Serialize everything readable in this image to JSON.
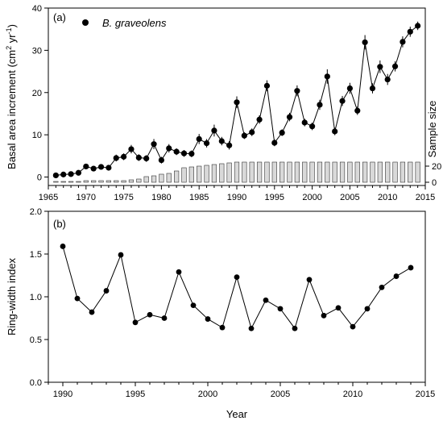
{
  "chart_data": [
    {
      "type": "line",
      "panel_label": "(a)",
      "ylabel_main": "Basal area increment (cm",
      "ylabel_sup1": "2",
      "ylabel_mid": " yr",
      "ylabel_sup2": "-1",
      "ylabel_end": ")",
      "ylabel_right": "Sample size",
      "xlabel": "",
      "xlim": [
        1965,
        2015
      ],
      "ylim": [
        -2,
        40
      ],
      "x_ticks": [
        1965,
        1970,
        1975,
        1980,
        1985,
        1990,
        1995,
        2000,
        2005,
        2010,
        2015
      ],
      "y_ticks": [
        0,
        10,
        20,
        30,
        40
      ],
      "y2_ticks": [
        0,
        20
      ],
      "legend": {
        "label": "B. graveolens",
        "position": "top-left"
      },
      "grid": false,
      "series": [
        {
          "name": "B. graveolens",
          "kind": "line+markers+errorbars",
          "x": [
            1966,
            1967,
            1968,
            1969,
            1970,
            1971,
            1972,
            1973,
            1974,
            1975,
            1976,
            1977,
            1978,
            1979,
            1980,
            1981,
            1982,
            1983,
            1984,
            1985,
            1986,
            1987,
            1988,
            1989,
            1990,
            1991,
            1992,
            1993,
            1994,
            1995,
            1996,
            1997,
            1998,
            1999,
            2000,
            2001,
            2002,
            2003,
            2004,
            2005,
            2006,
            2007,
            2008,
            2009,
            2010,
            2011,
            2012,
            2013,
            2014
          ],
          "values": [
            0.4,
            0.6,
            0.7,
            1.0,
            2.5,
            2.0,
            2.4,
            2.2,
            4.5,
            4.8,
            6.6,
            4.6,
            4.4,
            7.8,
            4.0,
            6.8,
            6.0,
            5.6,
            5.5,
            9.0,
            8.0,
            11.0,
            8.5,
            7.5,
            17.7,
            9.8,
            10.6,
            13.6,
            21.6,
            8.1,
            10.5,
            14.2,
            20.4,
            12.9,
            12.0,
            17.1,
            23.8,
            10.8,
            18.0,
            21.0,
            15.7,
            31.9,
            21.0,
            26.1,
            23.1,
            26.2,
            32.0,
            34.4,
            35.8
          ],
          "errors": [
            0.3,
            0.3,
            0.3,
            0.4,
            0.6,
            0.5,
            0.5,
            0.5,
            0.8,
            0.8,
            1.0,
            0.8,
            0.8,
            1.2,
            0.8,
            1.0,
            0.8,
            0.8,
            0.8,
            1.2,
            1.0,
            1.4,
            1.0,
            1.0,
            1.4,
            0.8,
            0.9,
            1.0,
            1.3,
            0.8,
            0.8,
            1.0,
            1.3,
            0.9,
            0.9,
            1.2,
            1.7,
            0.9,
            1.2,
            1.3,
            1.0,
            1.7,
            1.2,
            1.5,
            1.3,
            1.2,
            1.3,
            1.2,
            1.0
          ]
        },
        {
          "name": "",
          "kind": "bar-secondary",
          "x": [
            1966,
            1967,
            1968,
            1969,
            1970,
            1971,
            1972,
            1973,
            1974,
            1975,
            1976,
            1977,
            1978,
            1979,
            1980,
            1981,
            1982,
            1983,
            1984,
            1985,
            1986,
            1987,
            1988,
            1989,
            1990,
            1991,
            1992,
            1993,
            1994,
            1995,
            1996,
            1997,
            1998,
            1999,
            2000,
            2001,
            2002,
            2003,
            2004,
            2005,
            2006,
            2007,
            2008,
            2009,
            2010,
            2011,
            2012,
            2013,
            2014
          ],
          "values": [
            1,
            1,
            1,
            1,
            2,
            2,
            2,
            2,
            2,
            2,
            3,
            4,
            7,
            8,
            10,
            11,
            14,
            18,
            19,
            20,
            21,
            22,
            23,
            24,
            25,
            25,
            25,
            25,
            25,
            25,
            25,
            25,
            25,
            25,
            25,
            25,
            25,
            25,
            25,
            25,
            25,
            25,
            25,
            25,
            25,
            25,
            25,
            25,
            25
          ]
        }
      ]
    },
    {
      "type": "line",
      "panel_label": "(b)",
      "xlabel": "Year",
      "ylabel": "Ring-width index",
      "xlim": [
        1989,
        2015
      ],
      "ylim": [
        0.0,
        2.0
      ],
      "x_ticks": [
        1990,
        1995,
        2000,
        2005,
        2010,
        2015
      ],
      "y_ticks": [
        "0.0",
        "0.5",
        "1.0",
        "1.5",
        "2.0"
      ],
      "grid": false,
      "series": [
        {
          "name": "",
          "x": [
            1990,
            1991,
            1992,
            1993,
            1994,
            1995,
            1996,
            1997,
            1998,
            1999,
            2000,
            2001,
            2002,
            2003,
            2004,
            2005,
            2006,
            2007,
            2008,
            2009,
            2010,
            2011,
            2012,
            2013,
            2014
          ],
          "values": [
            1.59,
            0.98,
            0.82,
            1.07,
            1.49,
            0.7,
            0.79,
            0.75,
            1.29,
            0.9,
            0.74,
            0.64,
            1.23,
            0.63,
            0.96,
            0.86,
            0.63,
            1.2,
            0.78,
            0.87,
            0.65,
            0.86,
            1.11,
            1.24,
            1.34
          ]
        }
      ]
    }
  ]
}
